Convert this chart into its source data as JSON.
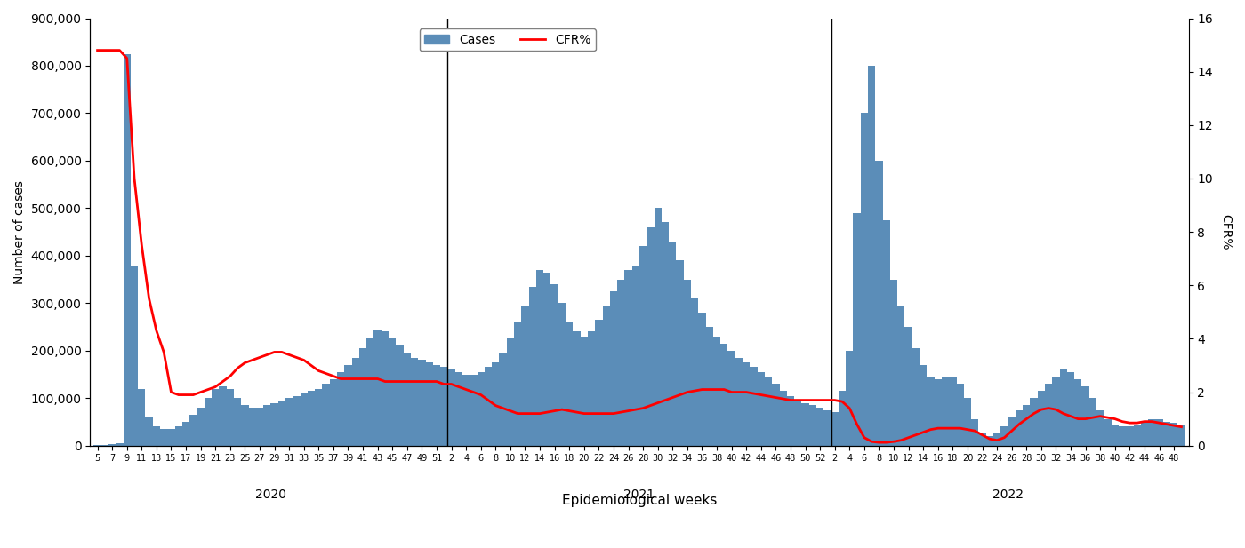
{
  "title": "",
  "xlabel": "Epidemiological weeks",
  "ylabel_left": "Number of cases",
  "ylabel_right": "CFR%",
  "bar_color": "#5B8DB8",
  "line_color": "#FF0000",
  "ylim_left": [
    0,
    900000
  ],
  "ylim_right": [
    0,
    16
  ],
  "yticks_left": [
    0,
    100000,
    200000,
    300000,
    400000,
    500000,
    600000,
    700000,
    800000,
    900000
  ],
  "yticks_right": [
    0,
    2,
    4,
    6,
    8,
    10,
    12,
    14,
    16
  ],
  "year_labels": [
    "2020",
    "2021",
    "2022"
  ],
  "n2020": 48,
  "n2021": 52,
  "n2022": 48,
  "cases_2020": [
    2000,
    2000,
    3000,
    5000,
    825000,
    380000,
    120000,
    60000,
    40000,
    35000,
    35000,
    40000,
    50000,
    65000,
    80000,
    100000,
    120000,
    125000,
    120000,
    100000,
    85000,
    80000,
    80000,
    85000,
    90000,
    95000,
    100000,
    105000,
    110000,
    115000,
    120000,
    130000,
    140000,
    155000,
    170000,
    185000,
    205000,
    225000,
    245000,
    240000,
    225000,
    210000,
    195000,
    185000,
    180000,
    175000,
    170000,
    165000
  ],
  "cases_2021": [
    160000,
    155000,
    150000,
    150000,
    155000,
    165000,
    175000,
    195000,
    225000,
    260000,
    295000,
    335000,
    370000,
    365000,
    340000,
    300000,
    260000,
    240000,
    230000,
    240000,
    265000,
    295000,
    325000,
    350000,
    370000,
    380000,
    420000,
    460000,
    500000,
    470000,
    430000,
    390000,
    350000,
    310000,
    280000,
    250000,
    230000,
    215000,
    200000,
    185000,
    175000,
    165000,
    155000,
    145000,
    130000,
    115000,
    105000,
    95000,
    90000,
    85000,
    80000,
    75000
  ],
  "cases_2022": [
    70000,
    115000,
    200000,
    490000,
    700000,
    800000,
    600000,
    475000,
    350000,
    295000,
    250000,
    205000,
    170000,
    145000,
    140000,
    145000,
    145000,
    130000,
    100000,
    55000,
    25000,
    20000,
    25000,
    40000,
    60000,
    75000,
    85000,
    100000,
    115000,
    130000,
    145000,
    160000,
    155000,
    140000,
    125000,
    100000,
    75000,
    55000,
    45000,
    40000,
    40000,
    45000,
    50000,
    55000,
    55000,
    50000,
    48000,
    45000
  ],
  "cfr_2020": [
    14.8,
    14.8,
    14.8,
    14.8,
    14.5,
    10.0,
    7.5,
    5.5,
    4.3,
    3.5,
    2.0,
    1.9,
    1.9,
    1.9,
    2.0,
    2.1,
    2.2,
    2.4,
    2.6,
    2.9,
    3.1,
    3.2,
    3.3,
    3.4,
    3.5,
    3.5,
    3.4,
    3.3,
    3.2,
    3.0,
    2.8,
    2.7,
    2.6,
    2.5,
    2.5,
    2.5,
    2.5,
    2.5,
    2.5,
    2.4,
    2.4,
    2.4,
    2.4,
    2.4,
    2.4,
    2.4,
    2.4,
    2.3
  ],
  "cfr_2021": [
    2.3,
    2.2,
    2.1,
    2.0,
    1.9,
    1.7,
    1.5,
    1.4,
    1.3,
    1.2,
    1.2,
    1.2,
    1.2,
    1.25,
    1.3,
    1.35,
    1.3,
    1.25,
    1.2,
    1.2,
    1.2,
    1.2,
    1.2,
    1.25,
    1.3,
    1.35,
    1.4,
    1.5,
    1.6,
    1.7,
    1.8,
    1.9,
    2.0,
    2.05,
    2.1,
    2.1,
    2.1,
    2.1,
    2.0,
    2.0,
    2.0,
    1.95,
    1.9,
    1.85,
    1.8,
    1.75,
    1.7,
    1.7,
    1.7,
    1.7,
    1.7,
    1.7
  ],
  "cfr_2022": [
    1.7,
    1.65,
    1.4,
    0.8,
    0.3,
    0.15,
    0.12,
    0.12,
    0.15,
    0.2,
    0.3,
    0.4,
    0.5,
    0.6,
    0.65,
    0.65,
    0.65,
    0.65,
    0.6,
    0.55,
    0.4,
    0.25,
    0.2,
    0.3,
    0.55,
    0.8,
    1.0,
    1.2,
    1.35,
    1.4,
    1.35,
    1.2,
    1.1,
    1.0,
    1.0,
    1.05,
    1.1,
    1.05,
    1.0,
    0.9,
    0.85,
    0.85,
    0.9,
    0.9,
    0.85,
    0.8,
    0.75,
    0.7
  ]
}
